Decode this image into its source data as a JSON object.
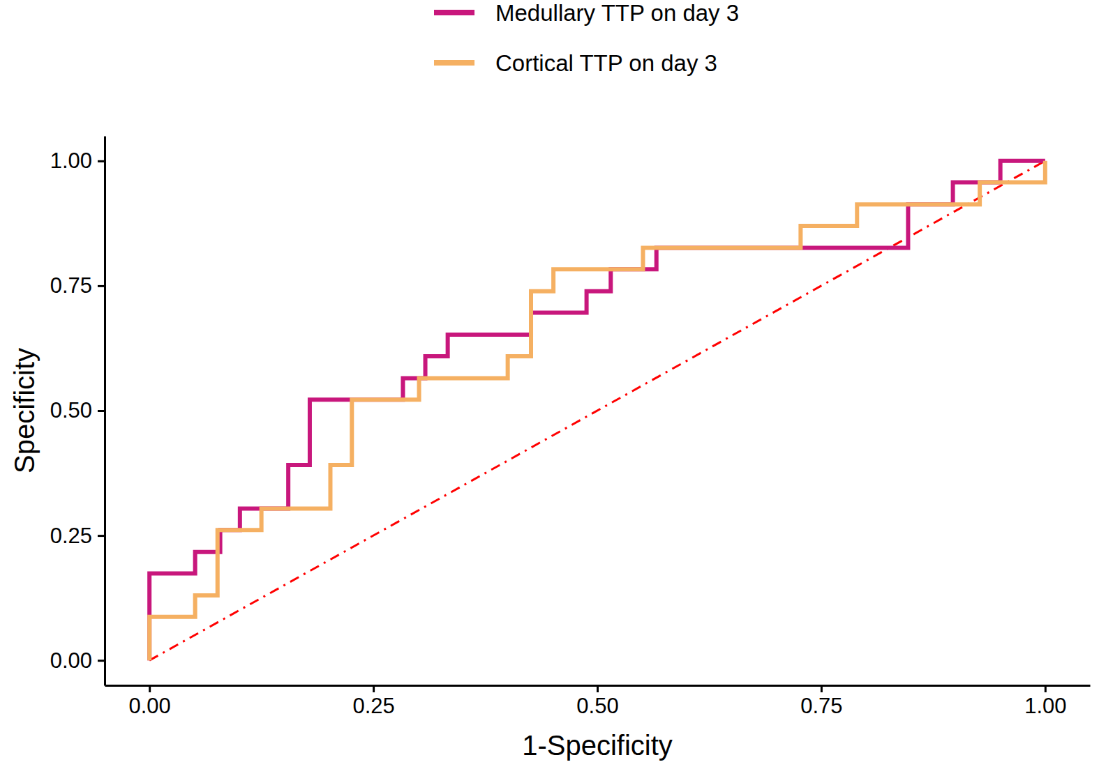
{
  "chart_data": {
    "type": "line",
    "x_label": "1-Specificity",
    "y_label": "Specificity",
    "xlim": [
      -0.05,
      1.05
    ],
    "ylim": [
      -0.05,
      1.05
    ],
    "xticks": [
      {
        "value": 0,
        "label": "0.00"
      },
      {
        "value": 0.25,
        "label": "0.25"
      },
      {
        "value": 0.5,
        "label": "0.50"
      },
      {
        "value": 0.75,
        "label": "0.75"
      },
      {
        "value": 1,
        "label": "1.00"
      }
    ],
    "yticks": [
      {
        "value": 0,
        "label": "0.00"
      },
      {
        "value": 0.25,
        "label": "0.25"
      },
      {
        "value": 0.5,
        "label": "0.50"
      },
      {
        "value": 0.75,
        "label": "0.75"
      },
      {
        "value": 1,
        "label": "1.00"
      }
    ],
    "grid": false,
    "legend": "top",
    "series": [
      {
        "name": "Medullary TTP on day 3",
        "color": "#c8177c",
        "line_style": "solid",
        "x": [
          0,
          0,
          0.051,
          0.051,
          0.079,
          0.079,
          0.101,
          0.101,
          0.155,
          0.155,
          0.179,
          0.179,
          0.283,
          0.283,
          0.308,
          0.308,
          0.333,
          0.333,
          0.426,
          0.426,
          0.488,
          0.488,
          0.515,
          0.515,
          0.566,
          0.566,
          0.847,
          0.847,
          0.897,
          0.897,
          0.95,
          0.95,
          1.0
        ],
        "values": [
          0,
          0.174,
          0.174,
          0.217,
          0.217,
          0.261,
          0.261,
          0.304,
          0.304,
          0.391,
          0.391,
          0.522,
          0.522,
          0.565,
          0.565,
          0.609,
          0.609,
          0.652,
          0.652,
          0.696,
          0.696,
          0.739,
          0.739,
          0.783,
          0.783,
          0.826,
          0.826,
          0.913,
          0.913,
          0.957,
          0.957,
          1.0,
          1.0
        ]
      },
      {
        "name": "Cortical TTP on day 3",
        "color": "#f5b062",
        "line_style": "solid",
        "x": [
          0,
          0,
          0.051,
          0.051,
          0.076,
          0.076,
          0.125,
          0.125,
          0.202,
          0.202,
          0.226,
          0.226,
          0.301,
          0.301,
          0.4,
          0.4,
          0.426,
          0.426,
          0.451,
          0.451,
          0.551,
          0.551,
          0.727,
          0.727,
          0.79,
          0.79,
          0.927,
          0.927,
          1.0,
          1.0
        ],
        "values": [
          0,
          0.087,
          0.087,
          0.13,
          0.13,
          0.261,
          0.261,
          0.304,
          0.304,
          0.391,
          0.391,
          0.522,
          0.522,
          0.565,
          0.565,
          0.609,
          0.609,
          0.739,
          0.739,
          0.783,
          0.783,
          0.826,
          0.826,
          0.87,
          0.87,
          0.913,
          0.913,
          0.957,
          0.957,
          1.0
        ]
      }
    ],
    "reference_line": {
      "x": [
        0,
        1
      ],
      "values": [
        0,
        1
      ],
      "color": "#ff0000",
      "line_style": "dashdot"
    }
  }
}
